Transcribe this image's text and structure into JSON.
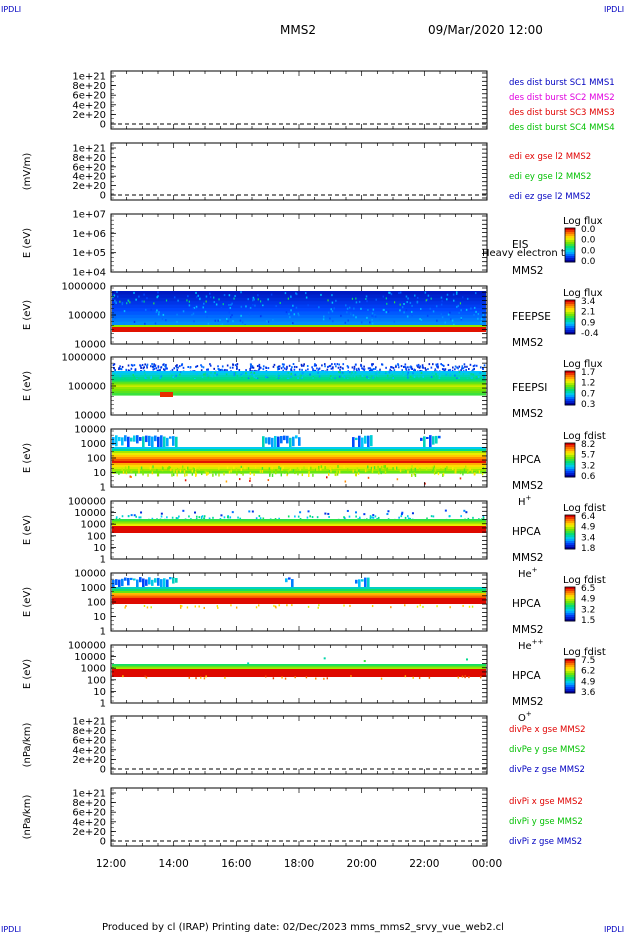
{
  "corner_tag": "IPDLI",
  "header": {
    "mission": "MMS2",
    "datetime": "09/Mar/2020 12:00"
  },
  "footer": {
    "text": "Produced by cl (IRAP)   Printing date: 02/Dec/2023   mms_mms2_srvy_vue_web2.cl"
  },
  "colors": {
    "red": "#e00000",
    "green": "#00c000",
    "blue": "#0000c0",
    "magenta": "#e000e0"
  },
  "chart_data": {
    "type": "multi-panel",
    "x_ticks": [
      "12:00",
      "14:00",
      "16:00",
      "18:00",
      "20:00",
      "22:00",
      "00:00"
    ],
    "panels": [
      {
        "kind": "line",
        "ylabel": "",
        "ticks": [
          "1e+21",
          "8e+20",
          "6e+20",
          "4e+20",
          "2e+20",
          "0"
        ],
        "legend": [
          {
            "text": "des dist burst SC1 MMS1",
            "color": "#0000c0"
          },
          {
            "text": "des dist burst SC2 MMS2",
            "color": "#e000e0"
          },
          {
            "text": "des dist burst SC3 MMS3",
            "color": "#e00000"
          },
          {
            "text": "des dist burst SC4 MMS4",
            "color": "#00c000"
          }
        ]
      },
      {
        "kind": "line",
        "ylabel": "(mV/m)",
        "ticks": [
          "1e+21",
          "8e+20",
          "6e+20",
          "4e+20",
          "2e+20",
          "0"
        ],
        "legend": [
          {
            "text": "edi ex gse l2 MMS2",
            "color": "#e00000"
          },
          {
            "text": "edi ey gse l2 MMS2",
            "color": "#00c000"
          },
          {
            "text": "edi ez gse l2 MMS2",
            "color": "#0000c0"
          }
        ]
      },
      {
        "kind": "spec",
        "fill": "none",
        "ylabel": "E (eV)",
        "ticks": [
          "1e+07",
          "1e+06",
          "1e+05",
          "1e+04"
        ],
        "labels": [
          "EIS",
          "MMS2"
        ],
        "overlay": "Heavy electron to",
        "cb_title": "Log flux",
        "cb_ticks": [
          "0.0",
          "0.0",
          "0.0",
          "0.0"
        ]
      },
      {
        "kind": "spec",
        "fill": "feepse",
        "ylabel": "E (eV)",
        "ticks": [
          "1000000",
          "100000",
          "10000"
        ],
        "labels": [
          "FEEPSE",
          "MMS2"
        ],
        "cb_title": "Log flux",
        "cb_ticks": [
          "3.4",
          "2.1",
          "0.9",
          "-0.4"
        ]
      },
      {
        "kind": "spec",
        "fill": "feepsi",
        "ylabel": "E (eV)",
        "ticks": [
          "1000000",
          "100000",
          "10000"
        ],
        "labels": [
          "FEEPSI",
          "MMS2"
        ],
        "cb_title": "Log flux",
        "cb_ticks": [
          "1.7",
          "1.2",
          "0.7",
          "0.3"
        ]
      },
      {
        "kind": "spec",
        "fill": "hplus",
        "ylabel": "E (eV)",
        "ticks": [
          "10000",
          "1000",
          "100",
          "10",
          "1"
        ],
        "labels": [
          "HPCA",
          "MMS2"
        ],
        "ion": "H",
        "ion_sup": "+",
        "cb_title": "Log fdist",
        "cb_ticks": [
          "8.2",
          "5.7",
          "3.2",
          "0.6"
        ]
      },
      {
        "kind": "spec",
        "fill": "heplus",
        "ylabel": "E (eV)",
        "ticks": [
          "100000",
          "10000",
          "1000",
          "100",
          "10",
          "1"
        ],
        "labels": [
          "HPCA",
          "MMS2"
        ],
        "ion": "He",
        "ion_sup": "+",
        "cb_title": "Log fdist",
        "cb_ticks": [
          "6.4",
          "4.9",
          "3.4",
          "1.8"
        ]
      },
      {
        "kind": "spec",
        "fill": "heplusplus",
        "ylabel": "E (eV)",
        "ticks": [
          "10000",
          "1000",
          "100",
          "10",
          "1"
        ],
        "labels": [
          "HPCA",
          "MMS2"
        ],
        "ion": "He",
        "ion_sup": "++",
        "cb_title": "Log fdist",
        "cb_ticks": [
          "6.5",
          "4.9",
          "3.2",
          "1.5"
        ]
      },
      {
        "kind": "spec",
        "fill": "oplus",
        "ylabel": "E (eV)",
        "ticks": [
          "100000",
          "10000",
          "1000",
          "100",
          "10",
          "1"
        ],
        "labels": [
          "HPCA",
          "MMS2"
        ],
        "ion": "O",
        "ion_sup": "+",
        "cb_title": "Log fdist",
        "cb_ticks": [
          "7.5",
          "6.2",
          "4.9",
          "3.6"
        ]
      },
      {
        "kind": "line",
        "ylabel": "(nPa/km)",
        "ticks": [
          "1e+21",
          "8e+20",
          "6e+20",
          "4e+20",
          "2e+20",
          "0"
        ],
        "legend": [
          {
            "text": "divPe x gse MMS2",
            "color": "#e00000"
          },
          {
            "text": "divPe y gse MMS2",
            "color": "#00c000"
          },
          {
            "text": "divPe z gse MMS2",
            "color": "#0000c0"
          }
        ]
      },
      {
        "kind": "line",
        "ylabel": "(nPa/km)",
        "ticks": [
          "1e+21",
          "8e+20",
          "6e+20",
          "4e+20",
          "2e+20",
          "0"
        ],
        "legend": [
          {
            "text": "divPi x gse MMS2",
            "color": "#e00000"
          },
          {
            "text": "divPi y gse MMS2",
            "color": "#00c000"
          },
          {
            "text": "divPi z gse MMS2",
            "color": "#0000c0"
          }
        ]
      }
    ]
  }
}
